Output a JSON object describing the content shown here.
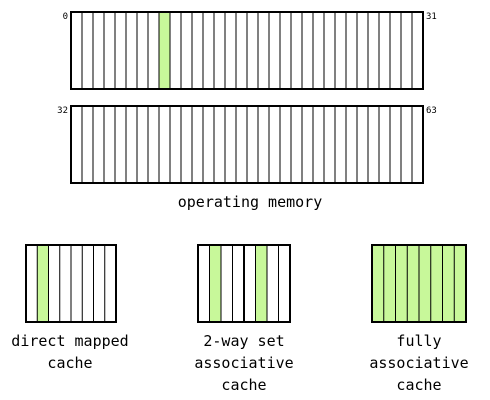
{
  "colors": {
    "highlight": "#c8f89a",
    "line": "#000000",
    "background": "#ffffff"
  },
  "memory": {
    "caption": "operating memory",
    "row1": {
      "start_label": "0",
      "end_label": "31",
      "slots": 32,
      "highlighted": [
        8
      ]
    },
    "row2": {
      "start_label": "32",
      "end_label": "63",
      "slots": 32,
      "highlighted": []
    }
  },
  "caches": [
    {
      "id": "direct-mapped",
      "caption_lines": [
        "direct mapped",
        "cache"
      ],
      "slots": 8,
      "highlighted": [
        1
      ]
    },
    {
      "id": "two-way-set",
      "caption_lines": [
        "2-way set",
        "associative",
        "cache"
      ],
      "slots": 8,
      "set_boundary_after": 4,
      "highlighted": [
        1,
        5
      ]
    },
    {
      "id": "fully-associative",
      "caption_lines": [
        "fully",
        "associative",
        "cache"
      ],
      "slots": 8,
      "highlighted": [
        0,
        1,
        2,
        3,
        4,
        5,
        6,
        7
      ]
    }
  ]
}
